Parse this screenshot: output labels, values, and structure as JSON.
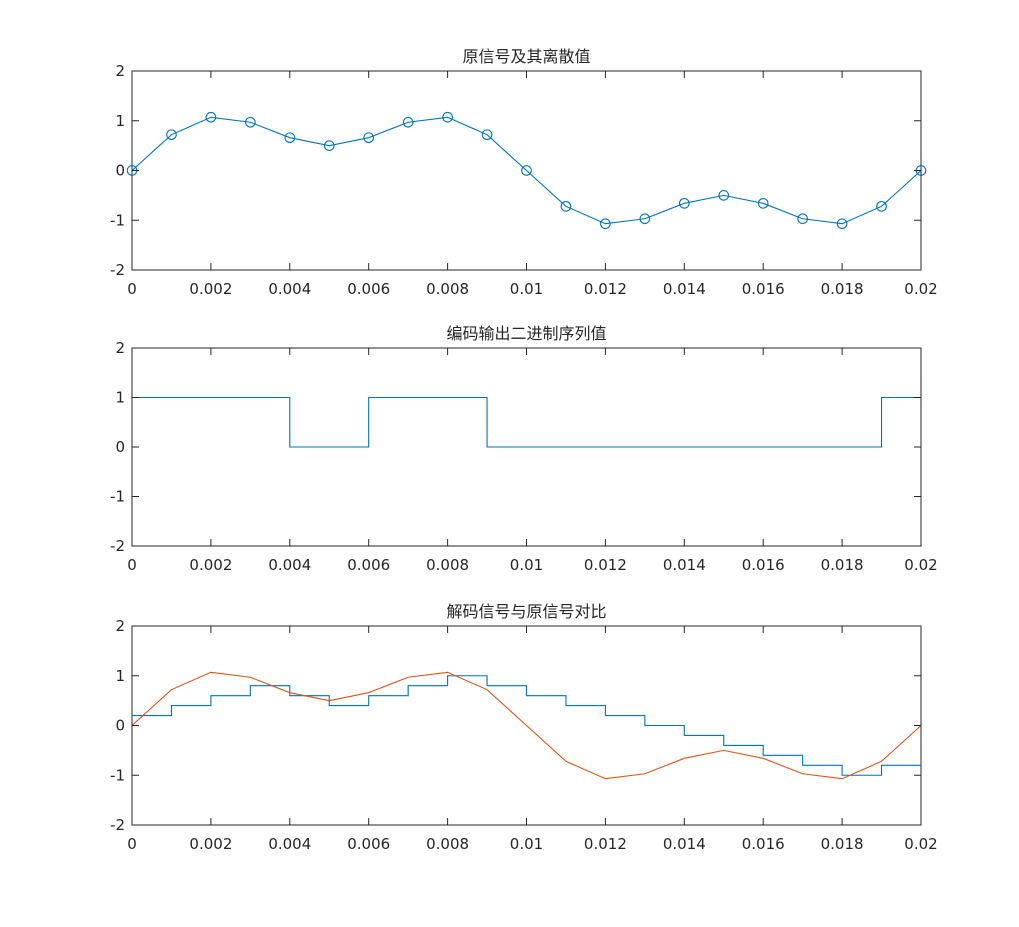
{
  "chart_data": [
    {
      "type": "line",
      "title": "原信号及其离散值",
      "xlabel": "",
      "ylabel": "",
      "xlim": [
        0,
        0.02
      ],
      "ylim": [
        -2,
        2
      ],
      "xticks": [
        "0",
        "0.002",
        "0.004",
        "0.006",
        "0.008",
        "0.01",
        "0.012",
        "0.014",
        "0.016",
        "0.018",
        "0.02"
      ],
      "yticks": [
        "-2",
        "-1",
        "0",
        "1",
        "2"
      ],
      "grid": false,
      "series": [
        {
          "color": "#0072BD",
          "style": "line-with-circle-markers",
          "x": [
            0,
            0.001,
            0.002,
            0.003,
            0.004,
            0.005,
            0.006,
            0.007,
            0.008,
            0.009,
            0.01,
            0.011,
            0.012,
            0.013,
            0.014,
            0.015,
            0.016,
            0.017,
            0.018,
            0.019,
            0.02
          ],
          "y": [
            0,
            0.72,
            1.07,
            0.97,
            0.66,
            0.5,
            0.66,
            0.97,
            1.07,
            0.72,
            0,
            -0.72,
            -1.07,
            -0.97,
            -0.66,
            -0.5,
            -0.66,
            -0.97,
            -1.07,
            -0.72,
            0
          ]
        }
      ]
    },
    {
      "type": "line",
      "title": "编码输出二进制序列值",
      "xlabel": "",
      "ylabel": "",
      "xlim": [
        0,
        0.02
      ],
      "ylim": [
        -2,
        2
      ],
      "xticks": [
        "0",
        "0.002",
        "0.004",
        "0.006",
        "0.008",
        "0.01",
        "0.012",
        "0.014",
        "0.016",
        "0.018",
        "0.02"
      ],
      "yticks": [
        "-2",
        "-1",
        "0",
        "1",
        "2"
      ],
      "grid": false,
      "series": [
        {
          "color": "#0072BD",
          "style": "step",
          "x": [
            0,
            0.004,
            0.004,
            0.006,
            0.006,
            0.009,
            0.009,
            0.019,
            0.019,
            0.02
          ],
          "y": [
            1,
            1,
            0,
            0,
            1,
            1,
            0,
            0,
            1,
            1
          ]
        }
      ]
    },
    {
      "type": "line",
      "title": "解码信号与原信号对比",
      "xlabel": "",
      "ylabel": "",
      "xlim": [
        0,
        0.02
      ],
      "ylim": [
        -2,
        2
      ],
      "xticks": [
        "0",
        "0.002",
        "0.004",
        "0.006",
        "0.008",
        "0.01",
        "0.012",
        "0.014",
        "0.016",
        "0.018",
        "0.02"
      ],
      "yticks": [
        "-2",
        "-1",
        "0",
        "1",
        "2"
      ],
      "grid": false,
      "series": [
        {
          "color": "#0072BD",
          "style": "step",
          "x": [
            0,
            0.001,
            0.001,
            0.002,
            0.002,
            0.003,
            0.003,
            0.004,
            0.004,
            0.005,
            0.005,
            0.006,
            0.006,
            0.007,
            0.007,
            0.008,
            0.008,
            0.009,
            0.009,
            0.01,
            0.01,
            0.011,
            0.011,
            0.012,
            0.012,
            0.013,
            0.013,
            0.014,
            0.014,
            0.015,
            0.015,
            0.016,
            0.016,
            0.017,
            0.017,
            0.018,
            0.018,
            0.019,
            0.019,
            0.02
          ],
          "y": [
            0.2,
            0.2,
            0.4,
            0.4,
            0.6,
            0.6,
            0.8,
            0.8,
            0.6,
            0.6,
            0.4,
            0.4,
            0.6,
            0.6,
            0.8,
            0.8,
            1.0,
            1.0,
            0.8,
            0.8,
            0.6,
            0.6,
            0.4,
            0.4,
            0.2,
            0.2,
            0.0,
            0.0,
            -0.2,
            -0.2,
            -0.4,
            -0.4,
            -0.6,
            -0.6,
            -0.8,
            -0.8,
            -1.0,
            -1.0,
            -0.8,
            -0.8
          ]
        },
        {
          "color": "#D95319",
          "style": "line",
          "x": [
            0,
            0.001,
            0.002,
            0.003,
            0.004,
            0.005,
            0.006,
            0.007,
            0.008,
            0.009,
            0.01,
            0.011,
            0.012,
            0.013,
            0.014,
            0.015,
            0.016,
            0.017,
            0.018,
            0.019,
            0.02
          ],
          "y": [
            0,
            0.72,
            1.07,
            0.97,
            0.66,
            0.5,
            0.66,
            0.97,
            1.07,
            0.72,
            0,
            -0.72,
            -1.07,
            -0.97,
            -0.66,
            -0.5,
            -0.66,
            -0.97,
            -1.07,
            -0.72,
            0
          ]
        }
      ]
    }
  ]
}
